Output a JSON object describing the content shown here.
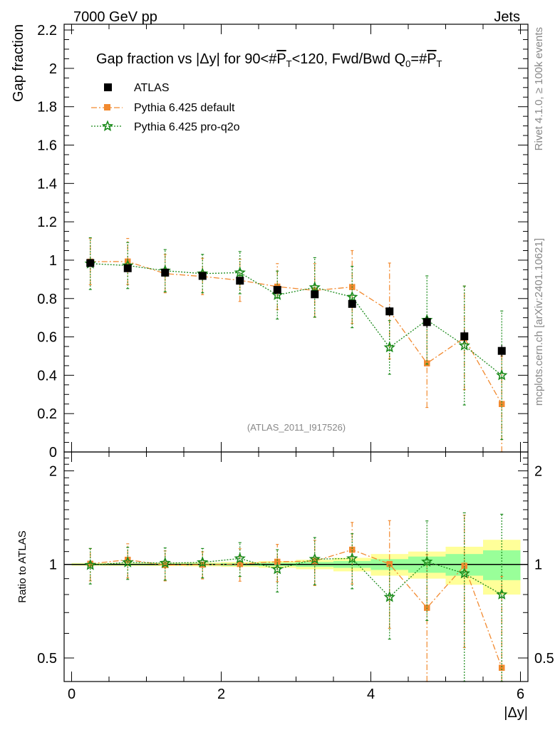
{
  "header": {
    "left": "7000 GeV pp",
    "right": "Jets"
  },
  "side_text": {
    "rivet": "Rivet 4.1.0, ≥ 100k events",
    "mcplots": "mcplots.cern.ch [arXiv:2401.10621]"
  },
  "chart_data": [
    {
      "type": "scatter",
      "title": "Gap fraction vs |Δy| for 90<#P̅T<120, Fwd/Bwd Q0=#P̅T",
      "ylabel": "Gap fraction",
      "xlabel": "|Δy|",
      "annotation": "(ATLAS_2011_I917526)",
      "xlim": [
        -0.1,
        6.1
      ],
      "ylim": [
        0,
        2.23
      ],
      "yticks": [
        "0",
        "0.2",
        "0.4",
        "0.6",
        "0.8",
        "1",
        "1.2",
        "1.4",
        "1.6",
        "1.8",
        "2",
        "2.2"
      ],
      "x": [
        0.25,
        0.75,
        1.25,
        1.75,
        2.25,
        2.75,
        3.25,
        3.75,
        4.25,
        4.75,
        5.25,
        5.75
      ],
      "series": [
        {
          "name": "ATLAS",
          "color": "#000000",
          "marker": "square",
          "values": [
            0.985,
            0.958,
            0.935,
            0.918,
            0.893,
            0.845,
            0.822,
            0.772,
            0.733,
            0.677,
            0.603,
            0.527
          ],
          "err": [
            0.01,
            0.01,
            0.01,
            0.01,
            0.015,
            0.015,
            0.02,
            0.02,
            0.025,
            0.03,
            0.03,
            0.03
          ]
        },
        {
          "name": "Pythia 6.425 default",
          "color": "#f28a30",
          "marker": "square",
          "values": [
            0.992,
            0.993,
            0.93,
            0.915,
            0.895,
            0.862,
            0.842,
            0.86,
            0.735,
            0.462,
            0.595,
            0.25
          ],
          "err": [
            0.12,
            0.12,
            0.1,
            0.095,
            0.11,
            0.12,
            0.14,
            0.19,
            0.25,
            0.23,
            0.27,
            0.25
          ]
        },
        {
          "name": "Pythia 6.425 pro-q2o",
          "color": "#1a8a1a",
          "marker": "star",
          "values": [
            0.982,
            0.972,
            0.945,
            0.93,
            0.935,
            0.818,
            0.858,
            0.808,
            0.545,
            0.688,
            0.555,
            0.4
          ],
          "err": [
            0.135,
            0.12,
            0.11,
            0.1,
            0.11,
            0.125,
            0.155,
            0.16,
            0.14,
            0.23,
            0.31,
            0.335
          ]
        }
      ]
    },
    {
      "type": "scatter",
      "title": "",
      "ylabel": "Ratio to ATLAS",
      "xlabel": "|Δy|",
      "xlim": [
        -0.1,
        6.1
      ],
      "ylim": [
        0.42,
        2.3
      ],
      "yticks": [
        "0.5",
        "1",
        "2"
      ],
      "xticks": [
        "0",
        "2",
        "4",
        "6"
      ],
      "x": [
        0.25,
        0.75,
        1.25,
        1.75,
        2.25,
        2.75,
        3.25,
        3.75,
        4.25,
        4.75,
        5.25,
        5.75
      ],
      "band_stat": [
        0.005,
        0.006,
        0.006,
        0.007,
        0.009,
        0.012,
        0.018,
        0.025,
        0.04,
        0.06,
        0.08,
        0.11
      ],
      "band_total": [
        0.01,
        0.011,
        0.012,
        0.014,
        0.018,
        0.025,
        0.035,
        0.05,
        0.08,
        0.1,
        0.14,
        0.2
      ],
      "series": [
        {
          "name": "Pythia 6.425 default",
          "color": "#f28a30",
          "marker": "square",
          "values": [
            1.005,
            1.035,
            0.995,
            0.998,
            1.003,
            1.02,
            1.025,
            1.115,
            1.003,
            0.725,
            0.99,
            0.465
          ],
          "err": [
            0.12,
            0.13,
            0.11,
            0.1,
            0.12,
            0.14,
            0.17,
            0.25,
            0.38,
            0.35,
            0.45,
            0.45
          ]
        },
        {
          "name": "Pythia 6.425 pro-q2o",
          "color": "#1a8a1a",
          "marker": "star",
          "values": [
            0.995,
            1.015,
            1.01,
            1.015,
            1.045,
            0.965,
            1.04,
            1.045,
            0.785,
            1.02,
            0.935,
            0.8
          ],
          "err": [
            0.13,
            0.12,
            0.12,
            0.11,
            0.13,
            0.15,
            0.18,
            0.21,
            0.21,
            0.36,
            0.53,
            0.65
          ]
        }
      ]
    }
  ]
}
